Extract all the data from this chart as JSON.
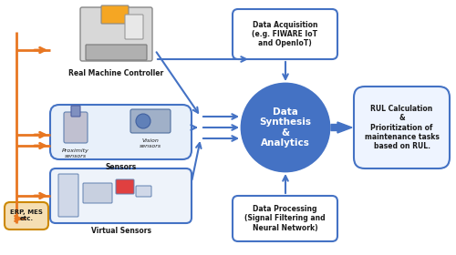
{
  "bg_color": "#ffffff",
  "orange_color": "#E87722",
  "blue_color": "#4472C4",
  "light_blue_box": "#DDEEFF",
  "circle_blue": "#4472C4",
  "circle_text_color": "#ffffff",
  "arrow_blue": "#4472C4",
  "arrow_orange": "#E87722",
  "box_border_blue": "#4472C4",
  "text_dark": "#1a1a1a",
  "sensors_box_bg": "#E8F0FA",
  "sensors_box_border": "#4472C4",
  "erp_box_bg": "#F5DEB3",
  "erp_box_border": "#CC8800",
  "rul_box_bg": "#EEF4FF",
  "rul_box_border": "#4472C4",
  "data_acq_box_bg": "#FFFFFF",
  "data_acq_box_border": "#4472C4",
  "data_proc_box_bg": "#FFFFFF",
  "data_proc_box_border": "#4472C4",
  "data_acq_text": "Data Acquisition\n(e.g. FIWARE IoT\nand OpenIoT)",
  "circle_text": "Data\nSynthesis\n&\nAnalytics",
  "data_proc_text": "Data Processing\n(Signal Filtering and\nNeural Network)",
  "rul_text": "RUL Calculation\n&\nPrioritization of\nmaintenance tasks\nbased on RUL.",
  "rmc_label": "Real Machine Controller",
  "sensors_label": "Sensors",
  "proximity_label": "Proximity\nsensors",
  "vision_label": "Vision\nsensors",
  "virtual_label": "Virtual Sensors",
  "erp_label": "ERP, MES\netc."
}
